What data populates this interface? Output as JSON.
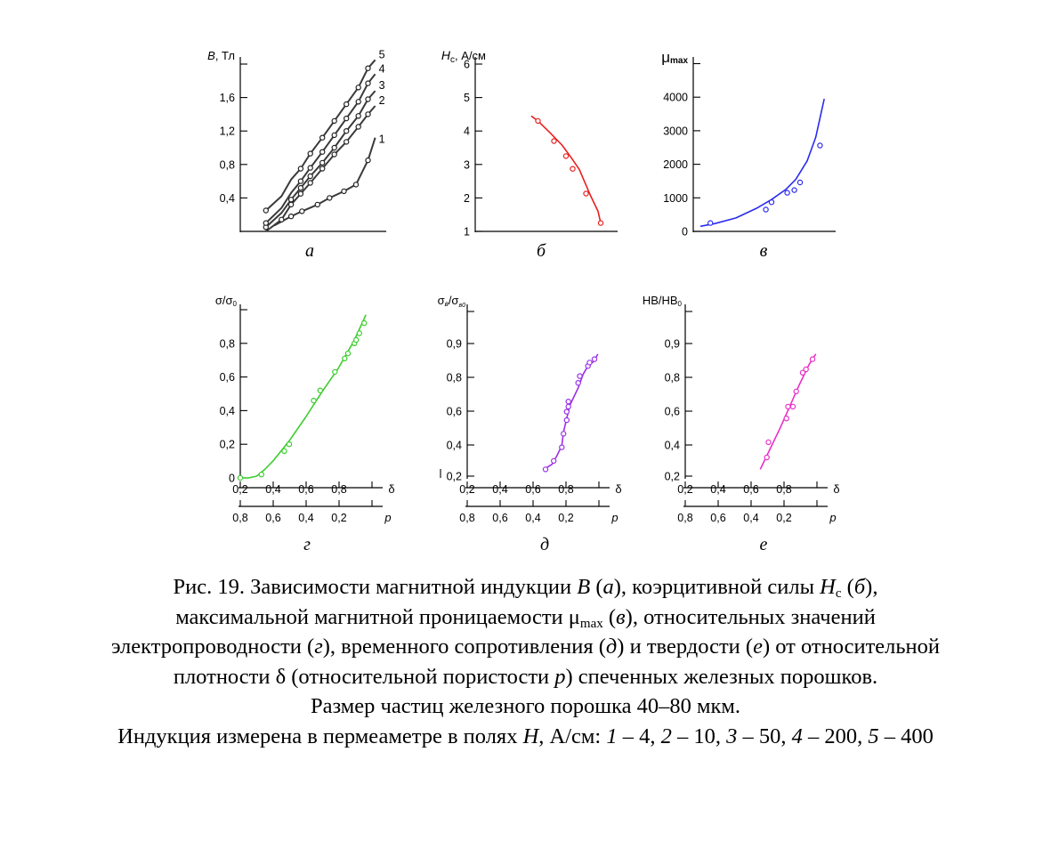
{
  "chart_data": [
    {
      "id": "a",
      "panel_label": "а",
      "type": "line",
      "y_title_italic": "B",
      "y_title_rest": ", Тл",
      "x_ticks": [],
      "y_ticks": [
        "0,4",
        "0,8",
        "1,2",
        "1,6",
        ""
      ],
      "ylim": [
        0,
        2.0
      ],
      "xlim": [
        0,
        1
      ],
      "color": "#3a3a3a",
      "series": [
        {
          "name": "1",
          "x": [
            0.12,
            0.26,
            0.35,
            0.48,
            0.58,
            0.7,
            0.8,
            0.9,
            0.96
          ],
          "y": [
            0.07,
            0.18,
            0.24,
            0.32,
            0.4,
            0.48,
            0.56,
            0.85,
            1.12
          ],
          "markers_x": [
            0.26,
            0.35,
            0.48,
            0.58,
            0.7,
            0.8,
            0.9
          ],
          "markers_y": [
            0.18,
            0.24,
            0.32,
            0.4,
            0.48,
            0.56,
            0.85
          ]
        },
        {
          "name": "2",
          "x": [
            0.05,
            0.18,
            0.26,
            0.34,
            0.42,
            0.52,
            0.62,
            0.72,
            0.82,
            0.9,
            0.96
          ],
          "y": [
            0.0,
            0.14,
            0.32,
            0.45,
            0.58,
            0.75,
            0.92,
            1.07,
            1.25,
            1.4,
            1.5
          ],
          "markers_x": [
            0.18,
            0.26,
            0.34,
            0.42,
            0.52,
            0.62,
            0.72,
            0.82,
            0.9
          ],
          "markers_y": [
            0.14,
            0.32,
            0.45,
            0.58,
            0.75,
            0.92,
            1.07,
            1.25,
            1.4
          ]
        },
        {
          "name": "3",
          "x": [
            0.05,
            0.18,
            0.26,
            0.34,
            0.42,
            0.52,
            0.62,
            0.72,
            0.82,
            0.9,
            0.96
          ],
          "y": [
            0.05,
            0.22,
            0.38,
            0.52,
            0.66,
            0.82,
            1.0,
            1.2,
            1.38,
            1.58,
            1.68
          ],
          "markers_x": [
            0.05,
            0.26,
            0.34,
            0.42,
            0.52,
            0.62,
            0.72,
            0.82,
            0.9
          ],
          "markers_y": [
            0.05,
            0.38,
            0.52,
            0.66,
            0.82,
            1.0,
            1.2,
            1.38,
            1.58
          ]
        },
        {
          "name": "4",
          "x": [
            0.05,
            0.18,
            0.26,
            0.34,
            0.42,
            0.52,
            0.62,
            0.72,
            0.82,
            0.9,
            0.96
          ],
          "y": [
            0.1,
            0.28,
            0.46,
            0.6,
            0.76,
            0.95,
            1.15,
            1.35,
            1.55,
            1.77,
            1.88
          ],
          "markers_x": [
            0.05,
            0.34,
            0.42,
            0.52,
            0.62,
            0.72,
            0.82,
            0.9
          ],
          "markers_y": [
            0.1,
            0.6,
            0.76,
            0.95,
            1.15,
            1.35,
            1.55,
            1.77
          ]
        },
        {
          "name": "5",
          "x": [
            0.05,
            0.18,
            0.26,
            0.34,
            0.42,
            0.52,
            0.62,
            0.72,
            0.82,
            0.9,
            0.96
          ],
          "y": [
            0.25,
            0.42,
            0.62,
            0.75,
            0.93,
            1.12,
            1.32,
            1.52,
            1.72,
            1.95,
            2.05
          ],
          "markers_x": [
            0.05,
            0.34,
            0.42,
            0.52,
            0.62,
            0.72,
            0.82,
            0.9
          ],
          "markers_y": [
            0.25,
            0.75,
            0.93,
            1.12,
            1.32,
            1.52,
            1.72,
            1.95
          ]
        }
      ]
    },
    {
      "id": "b",
      "panel_label": "б",
      "type": "line",
      "y_title_italic": "H",
      "y_title_sub": "c",
      "y_title_rest": ", А/см",
      "x_ticks": [],
      "y_ticks": [
        "1",
        "2",
        "3",
        "4",
        "5",
        "6"
      ],
      "ylim": [
        1,
        6
      ],
      "xlim": [
        0,
        1
      ],
      "color": "#e8201f",
      "series": [
        {
          "name": "",
          "x": [
            0.42,
            0.47,
            0.56,
            0.65,
            0.72,
            0.78,
            0.86,
            0.92,
            0.94
          ],
          "y": [
            4.45,
            4.3,
            3.95,
            3.58,
            3.2,
            2.85,
            2.1,
            1.6,
            1.25
          ],
          "markers_x": [
            0.47,
            0.59,
            0.68,
            0.73,
            0.83,
            0.94
          ],
          "markers_y": [
            4.3,
            3.7,
            3.25,
            2.87,
            2.13,
            1.25
          ]
        }
      ]
    },
    {
      "id": "c",
      "panel_label": "в",
      "type": "line",
      "y_title": "μ",
      "y_title_sub": "max",
      "x_ticks": [],
      "y_ticks": [
        "0",
        "1000",
        "2000",
        "3000",
        "4000",
        ""
      ],
      "ylim": [
        0,
        5000
      ],
      "xlim": [
        0,
        1
      ],
      "color": "#2b2bf0",
      "series": [
        {
          "name": "",
          "x": [
            0.05,
            0.15,
            0.3,
            0.45,
            0.55,
            0.65,
            0.72,
            0.8,
            0.86,
            0.92
          ],
          "y": [
            150,
            230,
            400,
            700,
            950,
            1250,
            1550,
            2100,
            2800,
            3950
          ],
          "markers_x": [
            0.12,
            0.51,
            0.55,
            0.66,
            0.71,
            0.75,
            0.89
          ],
          "markers_y": [
            250,
            650,
            870,
            1150,
            1230,
            1460,
            2560
          ]
        }
      ]
    },
    {
      "id": "d",
      "panel_label": "г",
      "type": "line",
      "y_title": "σ/σ",
      "y_title_sub": "0",
      "x_ticks": [
        "0,2",
        "0,4",
        "0,6",
        "0,8",
        "",
        "δ"
      ],
      "p_ticks": [
        "0,8",
        "0,6",
        "0,4",
        "0,2",
        "",
        "p"
      ],
      "y_ticks": [
        "0",
        "0,2",
        "0,4",
        "0,6",
        "0,8",
        ""
      ],
      "ylim": [
        0,
        1.0
      ],
      "xlim": [
        0.2,
        1.05
      ],
      "color": "#3dcc2e",
      "series": [
        {
          "name": "",
          "x": [
            0.2,
            0.25,
            0.3,
            0.35,
            0.4,
            0.5,
            0.6,
            0.7,
            0.8,
            0.9,
            0.97
          ],
          "y": [
            0.0,
            0.0,
            0.01,
            0.05,
            0.1,
            0.22,
            0.36,
            0.51,
            0.65,
            0.82,
            0.97
          ],
          "markers_x": [
            0.2,
            0.33,
            0.47,
            0.5,
            0.65,
            0.69,
            0.78,
            0.84,
            0.86,
            0.9,
            0.91,
            0.93,
            0.96
          ],
          "markers_y": [
            0.0,
            0.02,
            0.16,
            0.2,
            0.46,
            0.52,
            0.63,
            0.71,
            0.74,
            0.8,
            0.82,
            0.86,
            0.92
          ]
        }
      ]
    },
    {
      "id": "e",
      "panel_label": "д",
      "type": "line",
      "y_title": "σ",
      "y_title_sub": "в",
      "y_title_mid": "/σ",
      "y_title_sub2": "в0",
      "x_ticks": [
        "0,2",
        "0,4",
        "0,6",
        "0,8",
        "",
        "δ"
      ],
      "p_ticks": [
        "0,8",
        "0,6",
        "0,4",
        "0,2",
        "",
        "p"
      ],
      "y_ticks": [
        "0,2",
        "0,4",
        "0,6",
        "0,8",
        "0,9",
        ""
      ],
      "ylim": [
        0.2,
        1.0
      ],
      "xlim": [
        0.2,
        1.05
      ],
      "color": "#9b30e8",
      "series": [
        {
          "name": "",
          "x": [
            0.67,
            0.72,
            0.75,
            0.78,
            0.79,
            0.81,
            0.83,
            0.85,
            0.88,
            0.91,
            0.94,
            0.98,
            1.0
          ],
          "y": [
            0.24,
            0.27,
            0.32,
            0.38,
            0.46,
            0.54,
            0.62,
            0.66,
            0.72,
            0.8,
            0.85,
            0.88,
            0.92
          ],
          "markers_x": [
            0.68,
            0.73,
            0.78,
            0.79,
            0.81,
            0.81,
            0.82,
            0.82,
            0.88,
            0.89,
            0.94,
            0.95,
            0.98
          ],
          "markers_y": [
            0.24,
            0.29,
            0.37,
            0.45,
            0.53,
            0.58,
            0.61,
            0.64,
            0.75,
            0.79,
            0.85,
            0.87,
            0.89
          ]
        }
      ]
    },
    {
      "id": "f",
      "panel_label": "е",
      "type": "line",
      "y_title": "HB/HB",
      "y_title_sub": "0",
      "x_ticks": [
        "0,2",
        "0,4",
        "0,6",
        "0,8",
        "",
        "δ"
      ],
      "p_ticks": [
        "0,8",
        "0,6",
        "0,4",
        "0,2",
        "",
        "p"
      ],
      "y_ticks": [
        "0,2",
        "0,4",
        "0,6",
        "0,8",
        "0,9",
        ""
      ],
      "ylim": [
        0.2,
        1.0
      ],
      "xlim": [
        0.2,
        1.05
      ],
      "color": "#ea2fc8",
      "series": [
        {
          "name": "",
          "x": [
            0.66,
            0.72,
            0.78,
            0.84,
            0.9,
            0.96,
            1.0
          ],
          "y": [
            0.24,
            0.36,
            0.48,
            0.61,
            0.74,
            0.86,
            0.92
          ],
          "markers_x": [
            0.7,
            0.71,
            0.82,
            0.83,
            0.86,
            0.88,
            0.92,
            0.94,
            0.98
          ],
          "markers_y": [
            0.31,
            0.4,
            0.54,
            0.61,
            0.61,
            0.7,
            0.81,
            0.83,
            0.89
          ]
        }
      ]
    }
  ],
  "caption": {
    "line1_a": "Рис. 19. Зависимости магнитной индукции ",
    "line1_b": "B",
    "line1_c": " (",
    "line1_d": "а",
    "line1_e": "), коэрцитивной силы ",
    "line1_f": "H",
    "line1_g": "c",
    "line1_h": " (",
    "line1_i": "б",
    "line1_j": "),",
    "line2_a": "максимальной магнитной проницаемости μ",
    "line2_b": "max",
    "line2_c": " (",
    "line2_d": "в",
    "line2_e": "), относительных значений",
    "line3_a": "электропроводности (",
    "line3_b": "г",
    "line3_c": "), временного сопротивления (",
    "line3_d": "д",
    "line3_e": ") и твердости (",
    "line3_f": "е",
    "line3_g": ") от относительной",
    "line4_a": "плотности δ (относительной пористости ",
    "line4_b": "p",
    "line4_c": ") спеченных железных порошков.",
    "line5": "Размер частиц железного порошка 40–80 мкм.",
    "line6_a": "Индукция измерена в пермеаметре в полях ",
    "line6_b": "H",
    "line6_c": ", А/см: ",
    "line6_d": "1",
    "line6_e": " – 4, ",
    "line6_f": "2",
    "line6_g": " – 10, ",
    "line6_h": "3",
    "line6_i": " – 50, ",
    "line6_j": "4",
    "line6_k": " – 200, ",
    "line6_l": "5",
    "line6_m": " – 400"
  }
}
